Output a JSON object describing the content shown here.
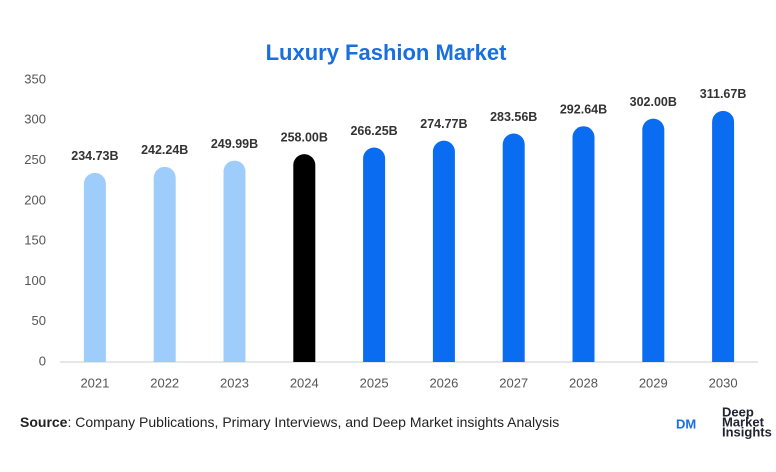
{
  "chart_data": {
    "type": "bar",
    "title": "Luxury Fashion Market",
    "categories": [
      "2021",
      "2022",
      "2023",
      "2024",
      "2025",
      "2026",
      "2027",
      "2028",
      "2029",
      "2030"
    ],
    "values": [
      234.73,
      242.24,
      249.99,
      258.0,
      266.25,
      274.77,
      283.56,
      292.64,
      302.0,
      311.67
    ],
    "value_labels": [
      "234.73B",
      "242.24B",
      "249.99B",
      "258.00B",
      "266.25B",
      "274.77B",
      "283.56B",
      "292.64B",
      "302.00B",
      "311.67B"
    ],
    "colors": [
      "#9fcdfb",
      "#9fcdfb",
      "#9fcdfb",
      "#000000",
      "#0a6cf0",
      "#0a6cf0",
      "#0a6cf0",
      "#0a6cf0",
      "#0a6cf0",
      "#0a6cf0"
    ],
    "ylim": [
      0,
      350
    ],
    "yticks": [
      0,
      50,
      100,
      150,
      200,
      250,
      300,
      350
    ],
    "grid": false
  },
  "source": {
    "label": "Source",
    "text": ": Company Publications, Primary Interviews, and Deep Market insights Analysis"
  },
  "logo": {
    "mark": "DM",
    "lines": [
      "Deep",
      "Market",
      "Insights"
    ]
  }
}
